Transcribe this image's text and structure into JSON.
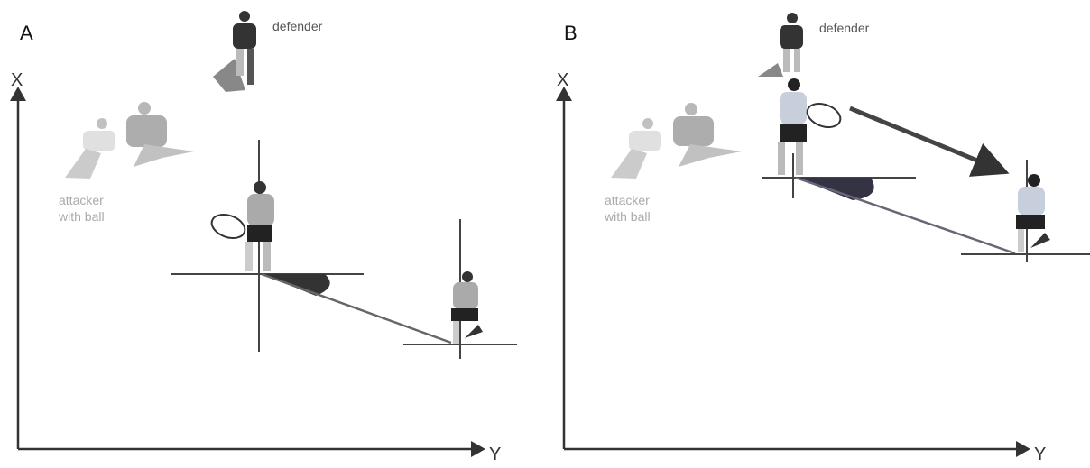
{
  "panels": [
    {
      "label": "A",
      "axis_labels": [
        "X",
        "Y"
      ],
      "defender": "defender",
      "attacker": [
        "attacker",
        "with ball"
      ]
    },
    {
      "label": "B",
      "axis_labels": [
        "X",
        "Y"
      ],
      "defender": "defender",
      "attacker": [
        "attacker",
        "with ball"
      ]
    }
  ]
}
